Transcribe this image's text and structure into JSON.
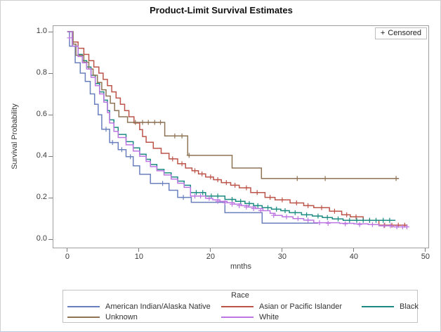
{
  "figure": {
    "title": "Product-Limit Survival Estimates"
  },
  "censored_inset": {
    "marker": "+",
    "label": "Censored"
  },
  "axes": {
    "x": {
      "label": "mnths"
    },
    "y": {
      "label": "Survival Probability"
    }
  },
  "legend": {
    "title": "Race",
    "entries": [
      {
        "label": "American Indian/Alaska Native",
        "color": "#6a80be"
      },
      {
        "label": "Asian or Pacific Islander",
        "color": "#bd544a"
      },
      {
        "label": "Black",
        "color": "#1b8a82"
      },
      {
        "label": "Unknown",
        "color": "#8e7355"
      },
      {
        "label": "White",
        "color": "#bc76e2"
      }
    ]
  },
  "chart_data": {
    "type": "line",
    "subtype": "kaplan-meier-step",
    "title": "Product-Limit Survival Estimates",
    "xlabel": "mnths",
    "ylabel": "Survival Probability",
    "xlim": [
      -1.95,
      50.4
    ],
    "ylim": [
      -0.04,
      1.027
    ],
    "x_ticks": [
      0,
      10,
      20,
      30,
      40,
      50
    ],
    "y_ticks": [
      0.0,
      0.2,
      0.4,
      0.6,
      0.8,
      1.0
    ],
    "grid": false,
    "legend_position": "bottom",
    "censored_marker": "+",
    "series": [
      {
        "id": "american-indian-alaska-native",
        "name": "American Indian/Alaska Native",
        "color": "#6a80be",
        "points": [
          [
            0,
            1.0
          ],
          [
            0.3,
            0.93
          ],
          [
            1.1,
            0.85
          ],
          [
            1.8,
            0.8
          ],
          [
            2.5,
            0.76
          ],
          [
            3.2,
            0.7
          ],
          [
            3.8,
            0.65
          ],
          [
            4.3,
            0.6
          ],
          [
            4.8,
            0.53
          ],
          [
            5.9,
            0.466
          ],
          [
            7.1,
            0.432
          ],
          [
            8.2,
            0.398
          ],
          [
            9.2,
            0.354
          ],
          [
            10.1,
            0.313
          ],
          [
            11.6,
            0.269
          ],
          [
            14.2,
            0.236
          ],
          [
            15.4,
            0.202
          ],
          [
            17.3,
            0.178
          ],
          [
            22,
            0.128
          ],
          [
            27.2,
            0.078
          ],
          [
            35,
            0.078
          ]
        ],
        "censored": [
          [
            5.4,
            0.53
          ],
          [
            6.3,
            0.466
          ],
          [
            7.6,
            0.432
          ],
          [
            8.8,
            0.398
          ],
          [
            13.3,
            0.269
          ],
          [
            16.2,
            0.202
          ]
        ]
      },
      {
        "id": "asian-or-pacific-islander",
        "name": "Asian or Pacific Islander",
        "color": "#bd544a",
        "points": [
          [
            0,
            1.0
          ],
          [
            0.7,
            0.95
          ],
          [
            1.5,
            0.92
          ],
          [
            2.3,
            0.89
          ],
          [
            3,
            0.86
          ],
          [
            3.7,
            0.83
          ],
          [
            4.4,
            0.8
          ],
          [
            5,
            0.77
          ],
          [
            5.6,
            0.74
          ],
          [
            6.2,
            0.71
          ],
          [
            6.8,
            0.68
          ],
          [
            7.4,
            0.65
          ],
          [
            8,
            0.62
          ],
          [
            8.6,
            0.59
          ],
          [
            9.3,
            0.56
          ],
          [
            10.1,
            0.528
          ],
          [
            10.5,
            0.495
          ],
          [
            11,
            0.467
          ],
          [
            12,
            0.438
          ],
          [
            13.1,
            0.414
          ],
          [
            14.2,
            0.387
          ],
          [
            15.4,
            0.364
          ],
          [
            16.5,
            0.343
          ],
          [
            17.4,
            0.33
          ],
          [
            18.3,
            0.315
          ],
          [
            19.3,
            0.3
          ],
          [
            20.4,
            0.287
          ],
          [
            21.5,
            0.273
          ],
          [
            22.8,
            0.26
          ],
          [
            24,
            0.248
          ],
          [
            25.6,
            0.225
          ],
          [
            27.6,
            0.202
          ],
          [
            29,
            0.19
          ],
          [
            31.1,
            0.175
          ],
          [
            33,
            0.162
          ],
          [
            34.4,
            0.152
          ],
          [
            36.6,
            0.135
          ],
          [
            38.3,
            0.118
          ],
          [
            39.5,
            0.108
          ],
          [
            41.3,
            0.091
          ],
          [
            43.5,
            0.068
          ],
          [
            47.5,
            0.068
          ]
        ],
        "censored": [
          [
            14.7,
            0.387
          ],
          [
            16,
            0.364
          ],
          [
            17.8,
            0.33
          ],
          [
            18.8,
            0.315
          ],
          [
            20,
            0.3
          ],
          [
            21,
            0.287
          ],
          [
            22.2,
            0.273
          ],
          [
            23.4,
            0.26
          ],
          [
            25,
            0.248
          ],
          [
            26.5,
            0.225
          ],
          [
            28.3,
            0.202
          ],
          [
            30,
            0.19
          ],
          [
            32,
            0.175
          ],
          [
            33.6,
            0.162
          ],
          [
            35.5,
            0.152
          ],
          [
            37.3,
            0.135
          ],
          [
            39,
            0.118
          ],
          [
            40.3,
            0.108
          ],
          [
            42.2,
            0.091
          ],
          [
            44.3,
            0.068
          ],
          [
            45.3,
            0.068
          ],
          [
            46.2,
            0.068
          ],
          [
            47.1,
            0.068
          ]
        ]
      },
      {
        "id": "black",
        "name": "Black",
        "color": "#1b8a82",
        "points": [
          [
            0,
            1.0
          ],
          [
            0.7,
            0.93
          ],
          [
            1.5,
            0.89
          ],
          [
            2.1,
            0.86
          ],
          [
            2.7,
            0.83
          ],
          [
            3.3,
            0.79
          ],
          [
            3.9,
            0.75
          ],
          [
            4.5,
            0.71
          ],
          [
            5.1,
            0.67
          ],
          [
            5.6,
            0.62
          ],
          [
            5.9,
            0.575
          ],
          [
            6.5,
            0.539
          ],
          [
            7.1,
            0.505
          ],
          [
            8.2,
            0.47
          ],
          [
            9.2,
            0.44
          ],
          [
            10.1,
            0.41
          ],
          [
            11,
            0.385
          ],
          [
            11.6,
            0.36
          ],
          [
            12.5,
            0.337
          ],
          [
            13.5,
            0.32
          ],
          [
            14.5,
            0.3
          ],
          [
            15.4,
            0.28
          ],
          [
            16.3,
            0.26
          ],
          [
            17.2,
            0.225
          ],
          [
            19.3,
            0.208
          ],
          [
            22,
            0.192
          ],
          [
            23.5,
            0.183
          ],
          [
            24.8,
            0.172
          ],
          [
            26,
            0.162
          ],
          [
            27.2,
            0.152
          ],
          [
            28.5,
            0.145
          ],
          [
            29.8,
            0.138
          ],
          [
            31,
            0.128
          ],
          [
            32.7,
            0.118
          ],
          [
            34.2,
            0.112
          ],
          [
            35.6,
            0.105
          ],
          [
            37,
            0.098
          ],
          [
            38.5,
            0.091
          ],
          [
            45.8,
            0.091
          ]
        ],
        "censored": [
          [
            18,
            0.225
          ],
          [
            18.9,
            0.225
          ],
          [
            20.1,
            0.208
          ],
          [
            21,
            0.208
          ],
          [
            23,
            0.192
          ],
          [
            24.2,
            0.183
          ],
          [
            25.4,
            0.172
          ],
          [
            26.6,
            0.162
          ],
          [
            28,
            0.152
          ],
          [
            29.2,
            0.145
          ],
          [
            30.4,
            0.138
          ],
          [
            31.8,
            0.128
          ],
          [
            33.4,
            0.118
          ],
          [
            35,
            0.112
          ],
          [
            36.3,
            0.105
          ],
          [
            37.8,
            0.098
          ],
          [
            39.4,
            0.091
          ],
          [
            40.4,
            0.091
          ],
          [
            41.3,
            0.091
          ],
          [
            42.2,
            0.091
          ],
          [
            43.1,
            0.091
          ],
          [
            44.1,
            0.091
          ],
          [
            45,
            0.091
          ]
        ]
      },
      {
        "id": "unknown",
        "name": "Unknown",
        "color": "#8e7355",
        "points": [
          [
            0,
            1.0
          ],
          [
            0.8,
            0.94
          ],
          [
            1.2,
            0.886
          ],
          [
            2.3,
            0.853
          ],
          [
            3,
            0.82
          ],
          [
            3.6,
            0.79
          ],
          [
            4.2,
            0.755
          ],
          [
            4.8,
            0.72
          ],
          [
            5.4,
            0.69
          ],
          [
            6,
            0.655
          ],
          [
            6.6,
            0.62
          ],
          [
            7.2,
            0.59
          ],
          [
            8.4,
            0.563
          ],
          [
            13.6,
            0.498
          ],
          [
            16.8,
            0.404
          ],
          [
            23,
            0.343
          ],
          [
            27.1,
            0.293
          ],
          [
            46.3,
            0.293
          ]
        ],
        "censored": [
          [
            9.5,
            0.563
          ],
          [
            10.5,
            0.563
          ],
          [
            11.3,
            0.563
          ],
          [
            12.2,
            0.563
          ],
          [
            13,
            0.563
          ],
          [
            15,
            0.498
          ],
          [
            16,
            0.498
          ],
          [
            17,
            0.404
          ],
          [
            32.1,
            0.293
          ],
          [
            36,
            0.293
          ],
          [
            45.9,
            0.293
          ]
        ]
      },
      {
        "id": "white",
        "name": "White",
        "color": "#bc76e2",
        "points": [
          [
            0,
            1.0
          ],
          [
            0.7,
            0.93
          ],
          [
            1.5,
            0.88
          ],
          [
            2.1,
            0.85
          ],
          [
            2.7,
            0.82
          ],
          [
            3.3,
            0.78
          ],
          [
            3.9,
            0.74
          ],
          [
            4.5,
            0.7
          ],
          [
            5.1,
            0.66
          ],
          [
            5.6,
            0.61
          ],
          [
            5.9,
            0.56
          ],
          [
            6.5,
            0.52
          ],
          [
            7.1,
            0.49
          ],
          [
            8.2,
            0.455
          ],
          [
            9.2,
            0.425
          ],
          [
            10.1,
            0.4
          ],
          [
            11,
            0.375
          ],
          [
            11.6,
            0.35
          ],
          [
            12.5,
            0.33
          ],
          [
            13.5,
            0.31
          ],
          [
            14.5,
            0.29
          ],
          [
            15.4,
            0.27
          ],
          [
            16.3,
            0.25
          ],
          [
            17.2,
            0.208
          ],
          [
            19.3,
            0.197
          ],
          [
            20.3,
            0.19
          ],
          [
            21.3,
            0.183
          ],
          [
            22.3,
            0.176
          ],
          [
            23.3,
            0.169
          ],
          [
            24.3,
            0.162
          ],
          [
            25.3,
            0.155
          ],
          [
            26.3,
            0.148
          ],
          [
            27.3,
            0.138
          ],
          [
            28.3,
            0.125
          ],
          [
            29,
            0.115
          ],
          [
            30,
            0.108
          ],
          [
            31.5,
            0.1
          ],
          [
            33,
            0.092
          ],
          [
            34.4,
            0.08
          ],
          [
            38,
            0.077
          ],
          [
            40,
            0.074
          ],
          [
            42,
            0.071
          ],
          [
            43.5,
            0.065
          ],
          [
            45.5,
            0.06
          ],
          [
            47.5,
            0.06
          ]
        ],
        "censored": [
          [
            0.3,
            0.97
          ],
          [
            17.8,
            0.208
          ],
          [
            18.6,
            0.208
          ],
          [
            19.8,
            0.197
          ],
          [
            21,
            0.183
          ],
          [
            22,
            0.176
          ],
          [
            23,
            0.169
          ],
          [
            24,
            0.162
          ],
          [
            25,
            0.155
          ],
          [
            26,
            0.148
          ],
          [
            27,
            0.138
          ],
          [
            28.8,
            0.115
          ],
          [
            30.6,
            0.108
          ],
          [
            32.2,
            0.1
          ],
          [
            33.6,
            0.092
          ],
          [
            35.2,
            0.08
          ],
          [
            36.4,
            0.077
          ],
          [
            38.8,
            0.074
          ],
          [
            40.8,
            0.071
          ],
          [
            42.6,
            0.071
          ],
          [
            44.2,
            0.065
          ],
          [
            45.1,
            0.065
          ],
          [
            46,
            0.06
          ],
          [
            46.8,
            0.06
          ],
          [
            47.4,
            0.06
          ]
        ]
      }
    ]
  }
}
